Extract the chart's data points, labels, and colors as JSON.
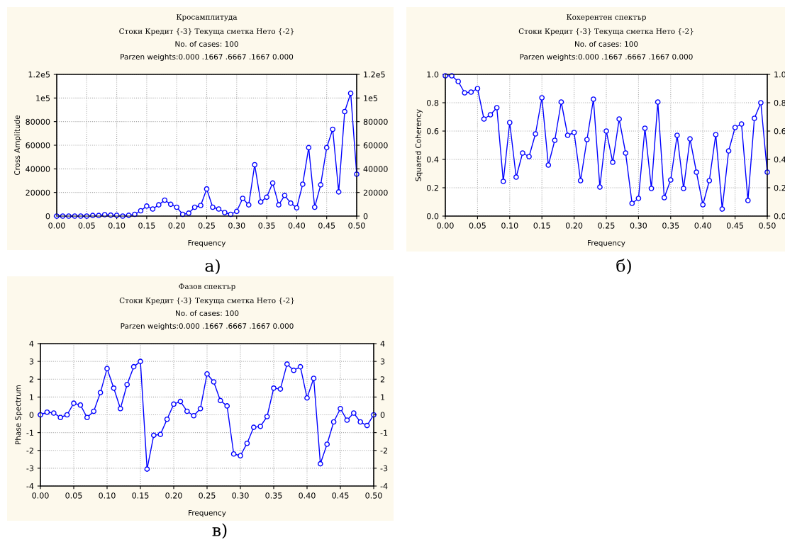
{
  "chart_data": [
    {
      "type": "line",
      "title": "Кросамплитуда",
      "subtitle": "Стоки Кредит {-3} Текуща сметка Нето {-2}\nNo. of cases: 100\nParzen weights:0.000 .1667 .6667 .1667 0.000",
      "xlabel": "Frequency",
      "ylabel": "Cross Amplitude",
      "annotations": [
        "а)"
      ],
      "x": [
        0,
        0.01,
        0.02,
        0.03,
        0.04,
        0.05,
        0.06,
        0.07,
        0.08,
        0.09,
        0.1,
        0.11,
        0.12,
        0.13,
        0.14,
        0.15,
        0.16,
        0.17,
        0.18,
        0.19,
        0.2,
        0.21,
        0.22,
        0.23,
        0.24,
        0.25,
        0.26,
        0.27,
        0.28,
        0.29,
        0.3,
        0.31,
        0.32,
        0.33,
        0.34,
        0.35,
        0.36,
        0.37,
        0.38,
        0.39,
        0.4,
        0.41,
        0.42,
        0.43,
        0.44,
        0.45,
        0.46,
        0.47,
        0.48,
        0.49,
        0.5
      ],
      "series": [
        {
          "color": "#0000ff",
          "values": [
            0,
            0,
            0,
            0,
            0,
            0,
            500,
            500,
            1200,
            800,
            700,
            0,
            700,
            1500,
            4500,
            8500,
            6000,
            9500,
            13500,
            10000,
            7500,
            1500,
            2500,
            7500,
            9000,
            23000,
            7500,
            6000,
            3000,
            1500,
            4000,
            15000,
            9500,
            43500,
            12000,
            16000,
            28000,
            9500,
            17500,
            11000,
            7000,
            27000,
            58000,
            7500,
            26500,
            58000,
            73500,
            20500,
            88500,
            104000,
            35500
          ]
        }
      ],
      "xlim": [
        0,
        0.5
      ],
      "xticks": [
        {
          "value": 0,
          "label": "0.00"
        },
        {
          "value": 0.05,
          "label": "0.05"
        },
        {
          "value": 0.1,
          "label": "0.10"
        },
        {
          "value": 0.15,
          "label": "0.15"
        },
        {
          "value": 0.2,
          "label": "0.20"
        },
        {
          "value": 0.25,
          "label": "0.25"
        },
        {
          "value": 0.3,
          "label": "0.30"
        },
        {
          "value": 0.35,
          "label": "0.35"
        },
        {
          "value": 0.4,
          "label": "0.40"
        },
        {
          "value": 0.45,
          "label": "0.45"
        },
        {
          "value": 0.5,
          "label": "0.50"
        }
      ],
      "ylim": [
        0,
        120000
      ],
      "yticks": [
        0,
        20000,
        40000,
        60000,
        80000,
        {
          "value": 100000,
          "label": "1e5"
        },
        {
          "value": 120000,
          "label": "1.2e5"
        }
      ],
      "y2lim": [
        0,
        120000
      ],
      "y2ticks": [
        0,
        20000,
        40000,
        60000,
        80000,
        {
          "value": 100000,
          "label": "1e5"
        },
        {
          "value": 120000,
          "label": "1.2e5"
        }
      ],
      "grid": true,
      "marker": "circle",
      "line_style": "solid"
    },
    {
      "type": "line",
      "title": "Кохерентен спектър",
      "subtitle": "Стоки Кредит {-3} Текуща сметка Нето {-2}\nNo. of cases: 100\nParzen weights:0.000 .1667 .6667 .1667 0.000",
      "xlabel": "Frequency",
      "ylabel": "Squared Coherency",
      "annotations": [
        "б)"
      ],
      "x": [
        0,
        0.01,
        0.02,
        0.03,
        0.04,
        0.05,
        0.06,
        0.07,
        0.08,
        0.09,
        0.1,
        0.11,
        0.12,
        0.13,
        0.14,
        0.15,
        0.16,
        0.17,
        0.18,
        0.19,
        0.2,
        0.21,
        0.22,
        0.23,
        0.24,
        0.25,
        0.26,
        0.27,
        0.28,
        0.29,
        0.3,
        0.31,
        0.32,
        0.33,
        0.34,
        0.35,
        0.36,
        0.37,
        0.38,
        0.39,
        0.4,
        0.41,
        0.42,
        0.43,
        0.44,
        0.45,
        0.46,
        0.47,
        0.48,
        0.49,
        0.5
      ],
      "series": [
        {
          "color": "#0000ff",
          "values": [
            0.99,
            0.99,
            0.95,
            0.87,
            0.875,
            0.9,
            0.685,
            0.715,
            0.765,
            0.245,
            0.66,
            0.275,
            0.445,
            0.42,
            0.58,
            0.835,
            0.36,
            0.535,
            0.805,
            0.57,
            0.59,
            0.25,
            0.54,
            0.825,
            0.205,
            0.6,
            0.38,
            0.685,
            0.445,
            0.09,
            0.125,
            0.62,
            0.195,
            0.805,
            0.13,
            0.255,
            0.57,
            0.195,
            0.545,
            0.31,
            0.08,
            0.25,
            0.575,
            0.05,
            0.46,
            0.625,
            0.65,
            0.11,
            0.69,
            0.8,
            0.31
          ]
        }
      ],
      "xlim": [
        0,
        0.5
      ],
      "xticks": [
        {
          "value": 0,
          "label": "0.00"
        },
        {
          "value": 0.05,
          "label": "0.05"
        },
        {
          "value": 0.1,
          "label": "0.10"
        },
        {
          "value": 0.15,
          "label": "0.15"
        },
        {
          "value": 0.2,
          "label": "0.20"
        },
        {
          "value": 0.25,
          "label": "0.25"
        },
        {
          "value": 0.3,
          "label": "0.30"
        },
        {
          "value": 0.35,
          "label": "0.35"
        },
        {
          "value": 0.4,
          "label": "0.40"
        },
        {
          "value": 0.45,
          "label": "0.45"
        },
        {
          "value": 0.5,
          "label": "0.50"
        }
      ],
      "ylim": [
        0,
        1
      ],
      "yticks": [
        {
          "value": 0,
          "label": "0.0"
        },
        {
          "value": 0.2,
          "label": "0.2"
        },
        {
          "value": 0.4,
          "label": "0.4"
        },
        {
          "value": 0.6,
          "label": "0.6"
        },
        {
          "value": 0.8,
          "label": "0.8"
        },
        {
          "value": 1,
          "label": "1.0"
        }
      ],
      "y2lim": [
        0,
        1
      ],
      "y2ticks": [
        {
          "value": 0,
          "label": "0.0"
        },
        {
          "value": 0.2,
          "label": "0.2"
        },
        {
          "value": 0.4,
          "label": "0.4"
        },
        {
          "value": 0.6,
          "label": "0.6"
        },
        {
          "value": 0.8,
          "label": "0.8"
        },
        {
          "value": 1,
          "label": "1.0"
        }
      ],
      "grid": true,
      "marker": "circle",
      "line_style": "solid"
    },
    {
      "type": "line",
      "title": "Фазов спектър",
      "subtitle": "Стоки Кредит {-3} Текуща сметка Нето {-2}\nNo. of cases: 100\nParzen weights:0.000 .1667 .6667 .1667 0.000",
      "xlabel": "Frequency",
      "ylabel": "Phase Spectrum",
      "annotations": [
        "в)"
      ],
      "x": [
        0,
        0.01,
        0.02,
        0.03,
        0.04,
        0.05,
        0.06,
        0.07,
        0.08,
        0.09,
        0.1,
        0.11,
        0.12,
        0.13,
        0.14,
        0.15,
        0.16,
        0.17,
        0.18,
        0.19,
        0.2,
        0.21,
        0.22,
        0.23,
        0.24,
        0.25,
        0.26,
        0.27,
        0.28,
        0.29,
        0.3,
        0.31,
        0.32,
        0.33,
        0.34,
        0.35,
        0.36,
        0.37,
        0.38,
        0.39,
        0.4,
        0.41,
        0.42,
        0.43,
        0.44,
        0.45,
        0.46,
        0.47,
        0.48,
        0.49,
        0.5
      ],
      "series": [
        {
          "color": "#0000ff",
          "values": [
            0,
            0.15,
            0.1,
            -0.15,
            0,
            0.65,
            0.55,
            -0.15,
            0.2,
            1.25,
            2.6,
            1.5,
            0.35,
            1.7,
            2.7,
            3.0,
            -3.05,
            -1.15,
            -1.1,
            -0.25,
            0.6,
            0.75,
            0.2,
            -0.05,
            0.35,
            2.3,
            1.85,
            0.8,
            0.5,
            -2.2,
            -2.3,
            -1.6,
            -0.7,
            -0.65,
            -0.1,
            1.5,
            1.45,
            2.85,
            2.5,
            2.7,
            0.95,
            2.05,
            -2.75,
            -1.65,
            -0.4,
            0.35,
            -0.3,
            0.1,
            -0.4,
            -0.6,
            0
          ]
        }
      ],
      "xlim": [
        0,
        0.5
      ],
      "xticks": [
        {
          "value": 0,
          "label": "0.00"
        },
        {
          "value": 0.05,
          "label": "0.05"
        },
        {
          "value": 0.1,
          "label": "0.10"
        },
        {
          "value": 0.15,
          "label": "0.15"
        },
        {
          "value": 0.2,
          "label": "0.20"
        },
        {
          "value": 0.25,
          "label": "0.25"
        },
        {
          "value": 0.3,
          "label": "0.30"
        },
        {
          "value": 0.35,
          "label": "0.35"
        },
        {
          "value": 0.4,
          "label": "0.40"
        },
        {
          "value": 0.45,
          "label": "0.45"
        },
        {
          "value": 0.5,
          "label": "0.50"
        }
      ],
      "ylim": [
        -4,
        4
      ],
      "yticks": [
        -4,
        -3,
        -2,
        -1,
        0,
        1,
        2,
        3,
        4
      ],
      "y2lim": [
        -4,
        4
      ],
      "y2ticks": [
        -4,
        -3,
        -2,
        -1,
        0,
        1,
        2,
        3,
        4
      ],
      "grid": true,
      "marker": "circle",
      "line_style": "solid"
    }
  ]
}
